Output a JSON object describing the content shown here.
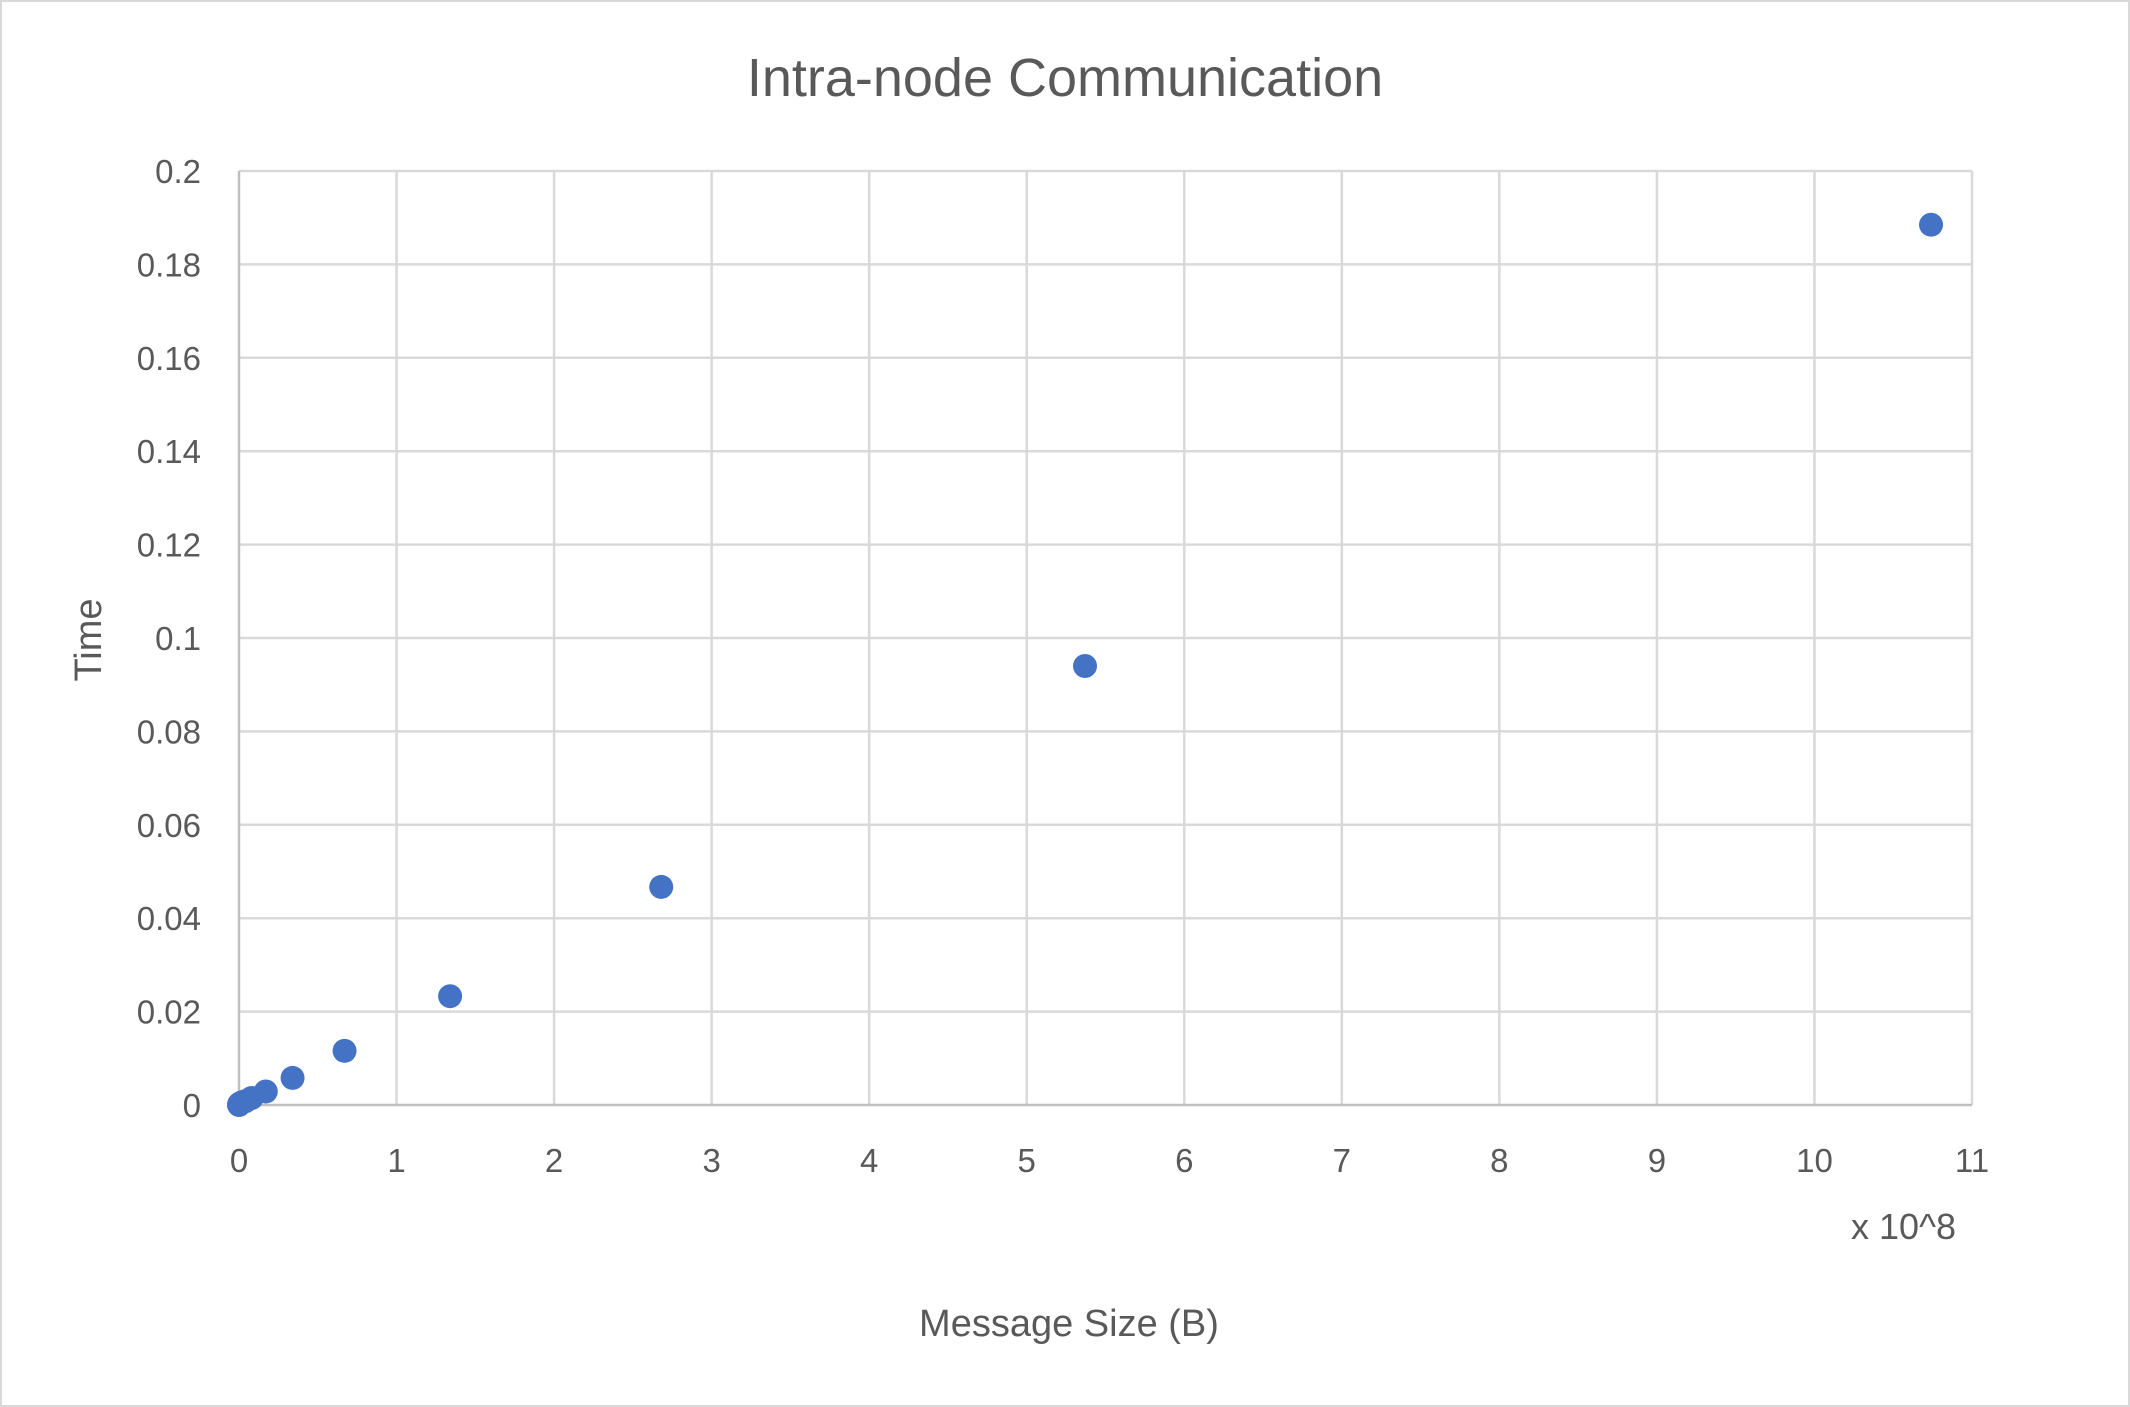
{
  "chart_data": {
    "type": "scatter",
    "title": "Intra-node Communication",
    "xlabel": "Message Size (B)",
    "ylabel": "Time",
    "x_multiplier_label": "x 10^8",
    "xlim": [
      0,
      11
    ],
    "ylim": [
      0,
      0.2
    ],
    "x_ticks": [
      "0",
      "1",
      "2",
      "3",
      "4",
      "5",
      "6",
      "7",
      "8",
      "9",
      "10",
      "11"
    ],
    "y_ticks": [
      "0",
      "0.02",
      "0.04",
      "0.06",
      "0.08",
      "0.1",
      "0.12",
      "0.14",
      "0.16",
      "0.18",
      "0.2"
    ],
    "grid": true,
    "legend": "none",
    "marker_color": "#4472c4",
    "points": [
      {
        "x": 0.0001,
        "y": 0.0
      },
      {
        "x": 0.0005,
        "y": 0.0001
      },
      {
        "x": 0.002,
        "y": 0.0002
      },
      {
        "x": 0.004,
        "y": 0.0003
      },
      {
        "x": 0.01,
        "y": 0.0004
      },
      {
        "x": 0.02,
        "y": 0.0006
      },
      {
        "x": 0.04,
        "y": 0.0008
      },
      {
        "x": 0.08,
        "y": 0.0015
      },
      {
        "x": 0.17,
        "y": 0.0029
      },
      {
        "x": 0.34,
        "y": 0.0058
      },
      {
        "x": 0.67,
        "y": 0.0116
      },
      {
        "x": 1.34,
        "y": 0.0233
      },
      {
        "x": 2.68,
        "y": 0.0467
      },
      {
        "x": 5.37,
        "y": 0.094
      },
      {
        "x": 10.74,
        "y": 0.1885
      }
    ]
  }
}
